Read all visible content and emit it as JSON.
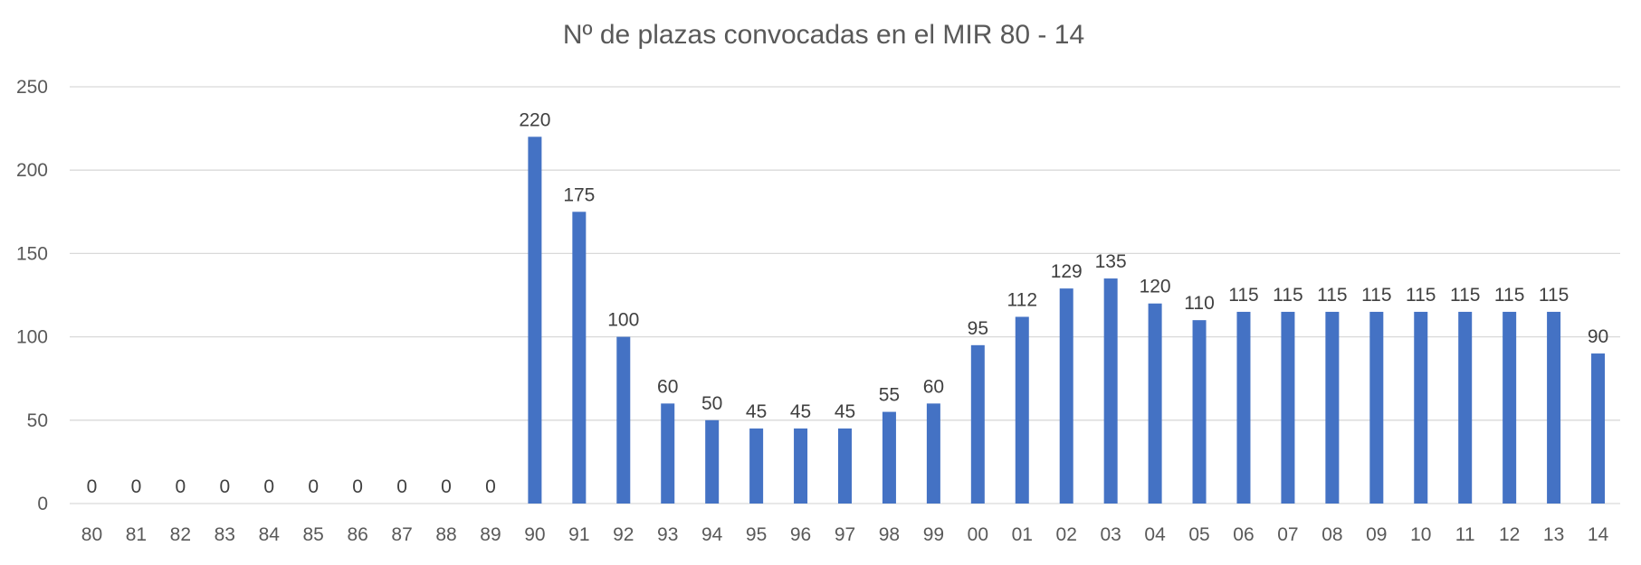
{
  "chart_data": {
    "type": "bar",
    "title": "Nº de plazas convocadas en el MIR 80 - 14",
    "xlabel": "",
    "ylabel": "",
    "categories": [
      "80",
      "81",
      "82",
      "83",
      "84",
      "85",
      "86",
      "87",
      "88",
      "89",
      "90",
      "91",
      "92",
      "93",
      "94",
      "95",
      "96",
      "97",
      "98",
      "99",
      "00",
      "01",
      "02",
      "03",
      "04",
      "05",
      "06",
      "07",
      "08",
      "09",
      "10",
      "11",
      "12",
      "13",
      "14"
    ],
    "values": [
      0,
      0,
      0,
      0,
      0,
      0,
      0,
      0,
      0,
      0,
      220,
      175,
      100,
      60,
      50,
      45,
      45,
      45,
      55,
      60,
      95,
      112,
      129,
      135,
      120,
      110,
      115,
      115,
      115,
      115,
      115,
      115,
      115,
      115,
      90
    ],
    "ylim": [
      0,
      250
    ],
    "yticks": [
      0,
      50,
      100,
      150,
      200,
      250
    ],
    "grid": true,
    "legend": "none",
    "bar_color": "#4472c4",
    "data_labels": true
  }
}
